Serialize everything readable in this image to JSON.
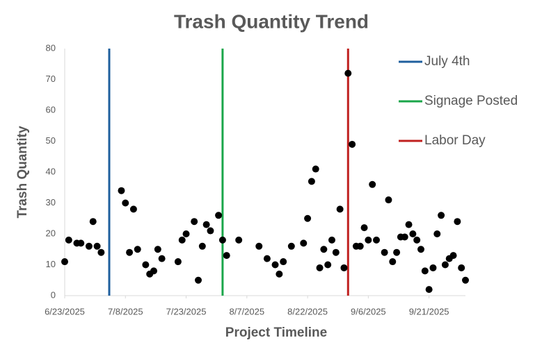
{
  "chart_data": {
    "type": "scatter",
    "title": "Trash Quantity Trend",
    "x_label": "Project Timeline",
    "y_label": "Trash Quantity",
    "color": "#000000",
    "x": [
      "2025-06-23",
      "2025-06-24",
      "2025-06-26",
      "2025-06-27",
      "2025-06-29",
      "2025-06-30",
      "2025-07-01",
      "2025-07-02",
      "2025-07-07",
      "2025-07-08",
      "2025-07-09",
      "2025-07-10",
      "2025-07-11",
      "2025-07-13",
      "2025-07-14",
      "2025-07-15",
      "2025-07-16",
      "2025-07-17",
      "2025-07-21",
      "2025-07-22",
      "2025-07-23",
      "2025-07-25",
      "2025-07-26",
      "2025-07-27",
      "2025-07-28",
      "2025-07-29",
      "2025-07-31",
      "2025-08-01",
      "2025-08-02",
      "2025-08-05",
      "2025-08-10",
      "2025-08-12",
      "2025-08-14",
      "2025-08-15",
      "2025-08-16",
      "2025-08-18",
      "2025-08-21",
      "2025-08-22",
      "2025-08-23",
      "2025-08-24",
      "2025-08-25",
      "2025-08-26",
      "2025-08-27",
      "2025-08-28",
      "2025-08-29",
      "2025-08-30",
      "2025-08-31",
      "2025-09-01",
      "2025-09-02",
      "2025-09-03",
      "2025-09-04",
      "2025-09-05",
      "2025-09-06",
      "2025-09-07",
      "2025-09-08",
      "2025-09-10",
      "2025-09-11",
      "2025-09-12",
      "2025-09-13",
      "2025-09-14",
      "2025-09-15",
      "2025-09-16",
      "2025-09-17",
      "2025-09-18",
      "2025-09-19",
      "2025-09-20",
      "2025-09-21",
      "2025-09-22",
      "2025-09-23",
      "2025-09-24",
      "2025-09-25",
      "2025-09-26",
      "2025-09-27",
      "2025-09-28",
      "2025-09-29",
      "2025-09-30"
    ],
    "values": [
      11,
      18,
      17,
      17,
      16,
      24,
      16,
      14,
      34,
      30,
      14,
      28,
      15,
      10,
      7,
      8,
      15,
      12,
      11,
      18,
      20,
      24,
      5,
      16,
      23,
      21,
      26,
      18,
      13,
      18,
      16,
      12,
      10,
      7,
      11,
      16,
      17,
      25,
      37,
      41,
      9,
      15,
      10,
      18,
      14,
      28,
      9,
      72,
      49,
      16,
      16,
      22,
      18,
      36,
      18,
      14,
      31,
      11,
      14,
      19,
      19,
      23,
      20,
      18,
      15,
      8,
      2,
      9,
      20,
      26,
      10,
      12,
      13,
      24,
      9,
      5
    ],
    "xlim": [
      "2025-06-23",
      "2025-09-30"
    ],
    "xticks": [
      {
        "value": "2025-06-23",
        "label": "6/23/2025"
      },
      {
        "value": "2025-07-08",
        "label": "7/8/2025"
      },
      {
        "value": "2025-07-23",
        "label": "7/23/2025"
      },
      {
        "value": "2025-08-07",
        "label": "8/7/2025"
      },
      {
        "value": "2025-08-22",
        "label": "8/22/2025"
      },
      {
        "value": "2025-09-06",
        "label": "9/6/2025"
      },
      {
        "value": "2025-09-21",
        "label": "9/21/2025"
      }
    ],
    "ylim": [
      0,
      80
    ],
    "yticks": [
      0,
      10,
      20,
      30,
      40,
      50,
      60,
      70,
      80
    ],
    "grid": false,
    "vlines": [
      {
        "name": "July 4th",
        "color": "#1f5f9e",
        "x": "2025-07-04"
      },
      {
        "name": "Signage Posted",
        "color": "#1aa64a",
        "x": "2025-08-01"
      },
      {
        "name": "Labor Day",
        "color": "#c0201f",
        "x": "2025-09-01"
      }
    ],
    "legend": "right"
  }
}
